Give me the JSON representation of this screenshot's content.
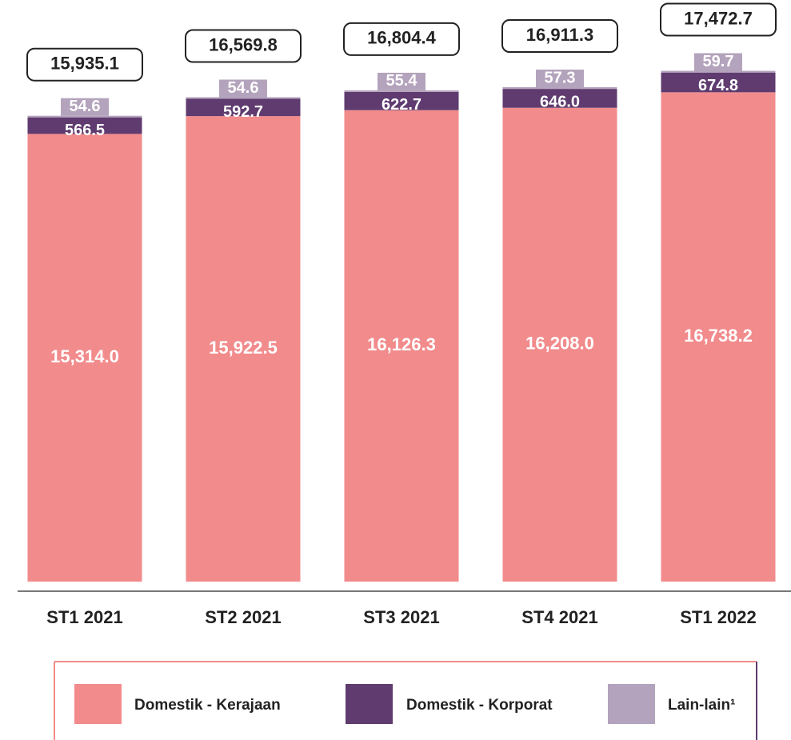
{
  "chart_data": {
    "type": "stacked_bar",
    "categories": [
      "ST1 2021",
      "ST2 2021",
      "ST3 2021",
      "ST4 2021",
      "ST1 2022"
    ],
    "series": [
      {
        "name": "Domestik - Kerajaan",
        "color": "#f28b8c",
        "values": [
          15314.0,
          15922.5,
          16126.3,
          16208.0,
          16738.2
        ],
        "value_labels": [
          "15,314.0",
          "15,922.5",
          "16,126.3",
          "16,208.0",
          "16,738.2"
        ]
      },
      {
        "name": "Domestik - Korporat",
        "color": "#5f3b6f",
        "values": [
          566.5,
          592.7,
          622.7,
          646.0,
          674.8
        ],
        "value_labels": [
          "566.5",
          "592.7",
          "622.7",
          "646.0",
          "674.8"
        ]
      },
      {
        "name": "Lain-lain¹",
        "color": "#b4a3bc",
        "values": [
          54.6,
          54.6,
          55.4,
          57.3,
          59.7
        ],
        "value_labels": [
          "54.6",
          "54.6",
          "55.4",
          "57.3",
          "59.7"
        ]
      }
    ],
    "totals": {
      "values": [
        15935.1,
        16569.8,
        16804.4,
        16911.3,
        17472.7
      ],
      "value_labels": [
        "15,935.1",
        "16,569.8",
        "16,804.4",
        "16,911.3",
        "17,472.7"
      ]
    },
    "ylim": [
      0,
      18800
    ]
  }
}
